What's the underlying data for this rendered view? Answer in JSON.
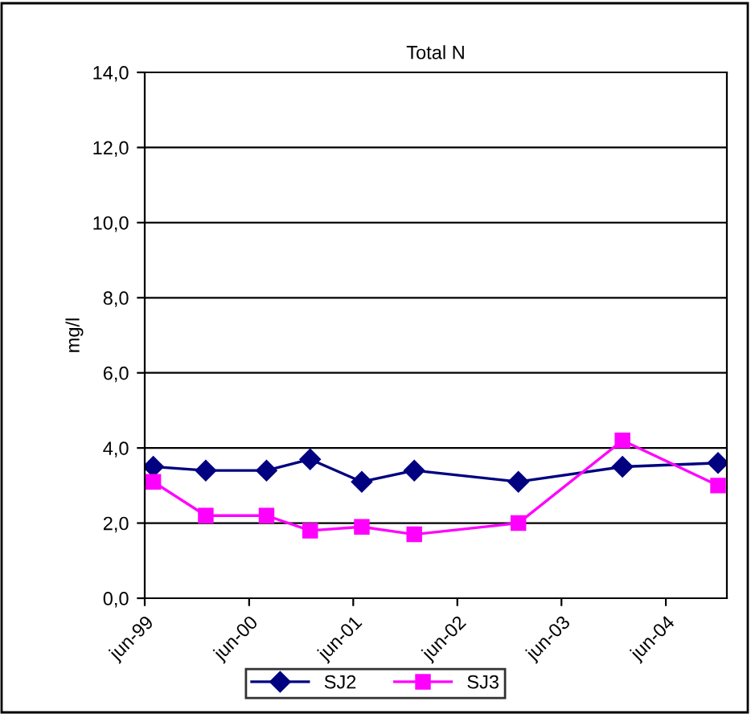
{
  "chart_data": {
    "type": "line",
    "title": "Total N",
    "ylabel": "mg/l",
    "x": [
      "1999-07",
      "2000-01",
      "2000-08",
      "2001-01",
      "2001-07",
      "2002-01",
      "2003-01",
      "2004-01",
      "2004-12"
    ],
    "series": [
      {
        "name": "SJ2",
        "color": "#000080",
        "marker": "diamond",
        "values": [
          3.5,
          3.4,
          3.4,
          3.7,
          3.1,
          3.4,
          3.1,
          3.5,
          3.6
        ]
      },
      {
        "name": "SJ3",
        "color": "#ff00ff",
        "marker": "square",
        "values": [
          3.1,
          2.2,
          2.2,
          1.8,
          1.9,
          1.7,
          2.0,
          4.2,
          3.0
        ]
      }
    ],
    "xlim": [
      "1999-06",
      "2005-01"
    ],
    "xticks": [
      {
        "value": "1999-06",
        "label": "jun-99"
      },
      {
        "value": "2000-06",
        "label": "jun-00"
      },
      {
        "value": "2001-06",
        "label": "jun-01"
      },
      {
        "value": "2002-06",
        "label": "jun-02"
      },
      {
        "value": "2003-06",
        "label": "jun-03"
      },
      {
        "value": "2004-06",
        "label": "jun-04"
      }
    ],
    "ylim": [
      0,
      14
    ],
    "yticks": [
      {
        "value": 0,
        "label": "0,0"
      },
      {
        "value": 2,
        "label": "2,0"
      },
      {
        "value": 4,
        "label": "4,0"
      },
      {
        "value": 6,
        "label": "6,0"
      },
      {
        "value": 8,
        "label": "8,0"
      },
      {
        "value": 10,
        "label": "10,0"
      },
      {
        "value": 12,
        "label": "12,0"
      },
      {
        "value": 14,
        "label": "14,0"
      }
    ],
    "grid": "y",
    "legend": "bottom",
    "line_style": "solid"
  }
}
